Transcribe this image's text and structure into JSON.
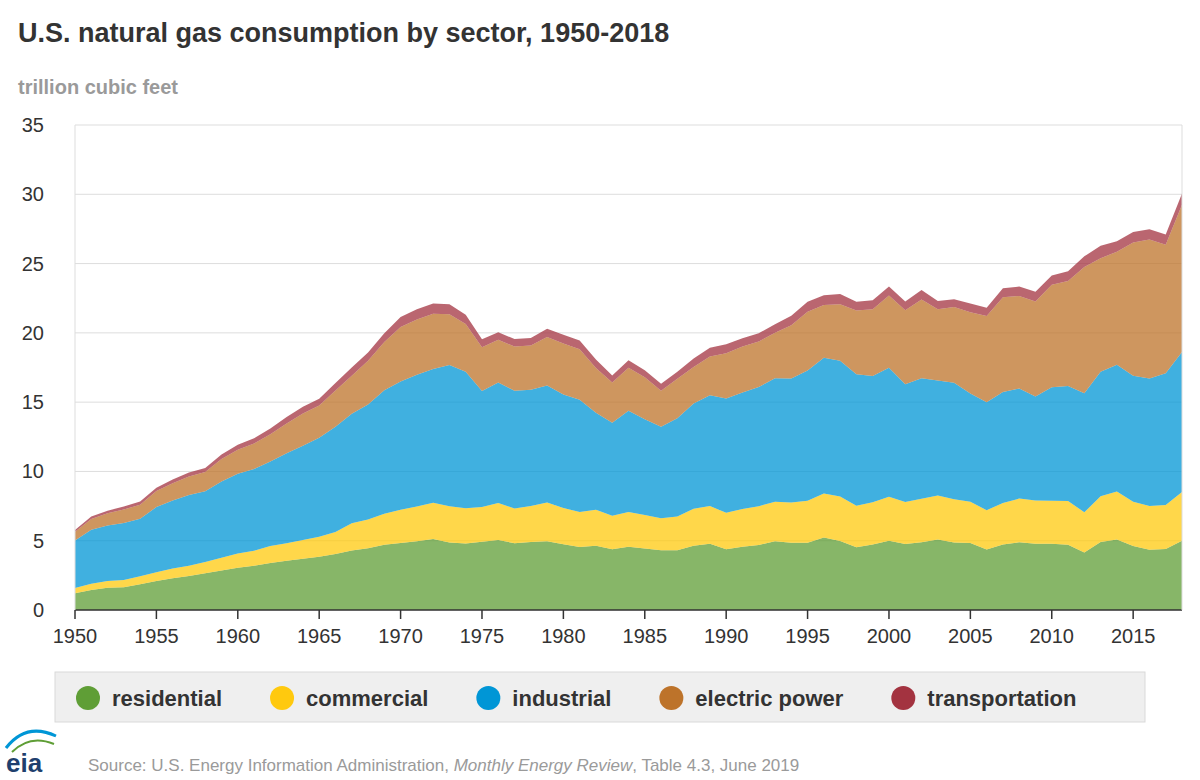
{
  "chart_data": {
    "type": "area",
    "title": "U.S. natural gas consumption by sector, 1950-2018",
    "y_label": "trillion cubic feet",
    "source": [
      "Source: U.S. Energy Information Administration, ",
      "Monthly Energy Review",
      ", Table 4.3, June 2019"
    ],
    "logo": "eia",
    "stacked": true,
    "grid": true,
    "legend": "bottom",
    "x": [
      1950,
      1951,
      1952,
      1953,
      1954,
      1955,
      1956,
      1957,
      1958,
      1959,
      1960,
      1961,
      1962,
      1963,
      1964,
      1965,
      1966,
      1967,
      1968,
      1969,
      1970,
      1971,
      1972,
      1973,
      1974,
      1975,
      1976,
      1977,
      1978,
      1979,
      1980,
      1981,
      1982,
      1983,
      1984,
      1985,
      1986,
      1987,
      1988,
      1989,
      1990,
      1991,
      1992,
      1993,
      1994,
      1995,
      1996,
      1997,
      1998,
      1999,
      2000,
      2001,
      2002,
      2003,
      2004,
      2005,
      2006,
      2007,
      2008,
      2009,
      2010,
      2011,
      2012,
      2013,
      2014,
      2015,
      2016,
      2017,
      2018
    ],
    "xlim": [
      1950,
      2018
    ],
    "xticks": [
      1950,
      1955,
      1960,
      1965,
      1970,
      1975,
      1980,
      1985,
      1990,
      1995,
      2000,
      2005,
      2010,
      2015
    ],
    "ylim": [
      0,
      35
    ],
    "yticks": [
      0,
      5,
      10,
      15,
      20,
      25,
      30,
      35
    ],
    "series": [
      {
        "name": "residential",
        "color": "#5f9e36",
        "values": [
          1.2,
          1.45,
          1.6,
          1.65,
          1.85,
          2.1,
          2.3,
          2.45,
          2.65,
          2.85,
          3.05,
          3.2,
          3.4,
          3.55,
          3.7,
          3.85,
          4.05,
          4.3,
          4.45,
          4.7,
          4.84,
          4.97,
          5.13,
          4.88,
          4.79,
          4.92,
          5.05,
          4.82,
          4.9,
          4.97,
          4.75,
          4.55,
          4.63,
          4.38,
          4.56,
          4.43,
          4.31,
          4.31,
          4.63,
          4.78,
          4.39,
          4.56,
          4.69,
          4.96,
          4.85,
          4.85,
          5.24,
          4.98,
          4.52,
          4.73,
          5.0,
          4.77,
          4.89,
          5.08,
          4.87,
          4.83,
          4.37,
          4.72,
          4.89,
          4.78,
          4.78,
          4.71,
          4.15,
          4.9,
          5.09,
          4.61,
          4.35,
          4.41,
          4.99
        ]
      },
      {
        "name": "commercial",
        "color": "#ffc90e",
        "values": [
          0.39,
          0.45,
          0.5,
          0.52,
          0.58,
          0.63,
          0.7,
          0.75,
          0.82,
          0.92,
          1.02,
          1.08,
          1.21,
          1.27,
          1.36,
          1.44,
          1.58,
          1.96,
          2.08,
          2.25,
          2.4,
          2.5,
          2.61,
          2.6,
          2.56,
          2.51,
          2.67,
          2.5,
          2.6,
          2.79,
          2.61,
          2.52,
          2.61,
          2.43,
          2.52,
          2.43,
          2.32,
          2.43,
          2.67,
          2.72,
          2.62,
          2.73,
          2.8,
          2.86,
          2.9,
          3.03,
          3.16,
          3.21,
          3.0,
          3.05,
          3.18,
          3.02,
          3.14,
          3.18,
          3.13,
          2.99,
          2.83,
          3.01,
          3.15,
          3.12,
          3.1,
          3.16,
          2.9,
          3.3,
          3.47,
          3.2,
          3.16,
          3.17,
          3.52
        ]
      },
      {
        "name": "industrial",
        "color": "#0096d6",
        "values": [
          3.43,
          3.9,
          4.0,
          4.1,
          4.15,
          4.7,
          4.9,
          5.1,
          5.1,
          5.5,
          5.77,
          5.9,
          6.1,
          6.5,
          6.8,
          7.14,
          7.6,
          7.9,
          8.3,
          8.9,
          9.25,
          9.5,
          9.66,
          10.2,
          9.85,
          8.37,
          8.7,
          8.5,
          8.4,
          8.45,
          8.2,
          8.1,
          7.0,
          6.7,
          7.3,
          6.9,
          6.6,
          7.1,
          7.6,
          8.0,
          8.26,
          8.4,
          8.6,
          8.9,
          8.95,
          9.4,
          9.8,
          9.8,
          9.5,
          9.1,
          9.3,
          8.5,
          8.7,
          8.3,
          8.4,
          7.8,
          7.8,
          8.0,
          7.95,
          7.5,
          8.2,
          8.3,
          8.6,
          9.0,
          9.14,
          9.1,
          9.2,
          9.5,
          10.1
        ]
      },
      {
        "name": "electric power",
        "color": "#bd732a",
        "values": [
          0.63,
          0.76,
          0.88,
          0.99,
          1.02,
          1.15,
          1.24,
          1.34,
          1.38,
          1.63,
          1.73,
          1.83,
          1.97,
          2.14,
          2.32,
          2.32,
          2.61,
          2.75,
          3.15,
          3.49,
          3.93,
          3.99,
          3.98,
          3.66,
          3.44,
          3.16,
          3.08,
          3.19,
          3.19,
          3.49,
          3.68,
          3.64,
          3.23,
          2.91,
          3.11,
          3.04,
          2.6,
          2.84,
          2.64,
          2.79,
          3.25,
          3.32,
          3.29,
          3.28,
          3.85,
          4.24,
          3.81,
          4.07,
          4.59,
          4.82,
          5.21,
          5.34,
          5.67,
          5.14,
          5.46,
          5.87,
          6.22,
          6.84,
          6.67,
          6.87,
          7.39,
          7.57,
          9.11,
          8.19,
          8.15,
          9.61,
          10.03,
          9.27,
          10.63
        ]
      },
      {
        "name": "transportation",
        "color": "#a33340",
        "values": [
          0.13,
          0.18,
          0.19,
          0.21,
          0.23,
          0.25,
          0.27,
          0.28,
          0.3,
          0.33,
          0.35,
          0.38,
          0.41,
          0.46,
          0.49,
          0.5,
          0.55,
          0.59,
          0.61,
          0.64,
          0.72,
          0.74,
          0.73,
          0.73,
          0.67,
          0.58,
          0.55,
          0.54,
          0.54,
          0.6,
          0.63,
          0.64,
          0.6,
          0.51,
          0.53,
          0.5,
          0.49,
          0.52,
          0.61,
          0.63,
          0.66,
          0.6,
          0.59,
          0.62,
          0.69,
          0.72,
          0.71,
          0.75,
          0.64,
          0.66,
          0.66,
          0.64,
          0.7,
          0.59,
          0.57,
          0.62,
          0.6,
          0.65,
          0.68,
          0.69,
          0.67,
          0.71,
          0.76,
          0.89,
          0.76,
          0.75,
          0.74,
          0.74,
          0.82
        ]
      }
    ]
  }
}
